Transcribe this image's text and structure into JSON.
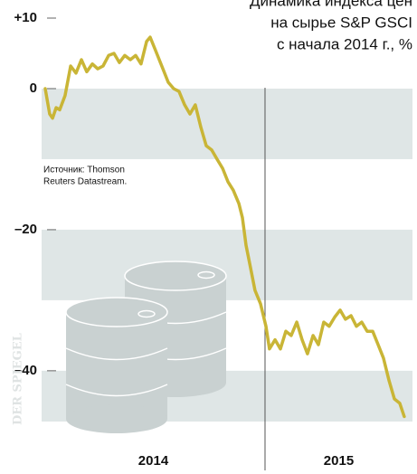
{
  "chart_data": {
    "type": "line",
    "title": [
      "Динамика индекса цен",
      "на сырье S&P GSCI",
      "с начала 2014 г., %"
    ],
    "source": [
      "Источник: Thomson",
      "Reuters Datastream."
    ],
    "watermark": "DER SPIEGEL",
    "color": "#c9b536",
    "band_color": "#dfe6e6",
    "xlim": [
      2014,
      2015.66
    ],
    "xticks": [
      2014,
      2015
    ],
    "ylim": [
      -47.2,
      10
    ],
    "yticks": [
      {
        "value": 10,
        "label": "+10"
      },
      0,
      {
        "value": -20,
        "label": "–20"
      },
      {
        "value": -40,
        "label": "–40"
      }
    ],
    "x": [
      2014.016,
      2014.036,
      2014.049,
      2014.065,
      2014.081,
      2014.105,
      2014.13,
      2014.154,
      2014.178,
      2014.202,
      2014.227,
      2014.251,
      2014.275,
      2014.3,
      2014.324,
      2014.348,
      2014.372,
      2014.397,
      2014.421,
      2014.445,
      2014.47,
      2014.486,
      2014.51,
      2014.543,
      2014.567,
      2014.591,
      2014.615,
      2014.64,
      2014.664,
      2014.688,
      2014.713,
      2014.737,
      2014.761,
      2014.785,
      2014.81,
      2014.834,
      2014.858,
      2014.883,
      2014.899,
      2014.915,
      2014.931,
      2014.955,
      2014.98,
      2015.004,
      2015.02,
      2015.045,
      2015.069,
      2015.093,
      2015.117,
      2015.142,
      2015.166,
      2015.19,
      2015.215,
      2015.239,
      2015.263,
      2015.287,
      2015.312,
      2015.336,
      2015.36,
      2015.385,
      2015.409,
      2015.433,
      2015.457,
      2015.482,
      2015.506,
      2015.53,
      2015.555,
      2015.579,
      2015.603,
      2015.623
    ],
    "values": [
      0,
      -3.6,
      -4.2,
      -2.7,
      -3.0,
      -1.0,
      3.2,
      2.2,
      4.1,
      2.4,
      3.5,
      2.8,
      3.2,
      4.7,
      5.0,
      3.7,
      4.7,
      4.1,
      4.7,
      3.5,
      6.7,
      7.3,
      5.4,
      2.8,
      0.9,
      0,
      -0.4,
      -2.3,
      -3.6,
      -2.3,
      -5.5,
      -8.1,
      -8.7,
      -10,
      -11.3,
      -13.2,
      -14.4,
      -16.3,
      -18.3,
      -22.2,
      -24.7,
      -28.6,
      -30.5,
      -33.7,
      -36.9,
      -35.6,
      -36.9,
      -34.4,
      -35,
      -33.1,
      -35.6,
      -37.6,
      -35,
      -36.3,
      -33.1,
      -33.7,
      -32.4,
      -31.4,
      -32.7,
      -32.2,
      -33.7,
      -33.1,
      -34.4,
      -34.4,
      -36.3,
      -38.2,
      -41.4,
      -44,
      -44.6,
      -46.5
    ]
  }
}
